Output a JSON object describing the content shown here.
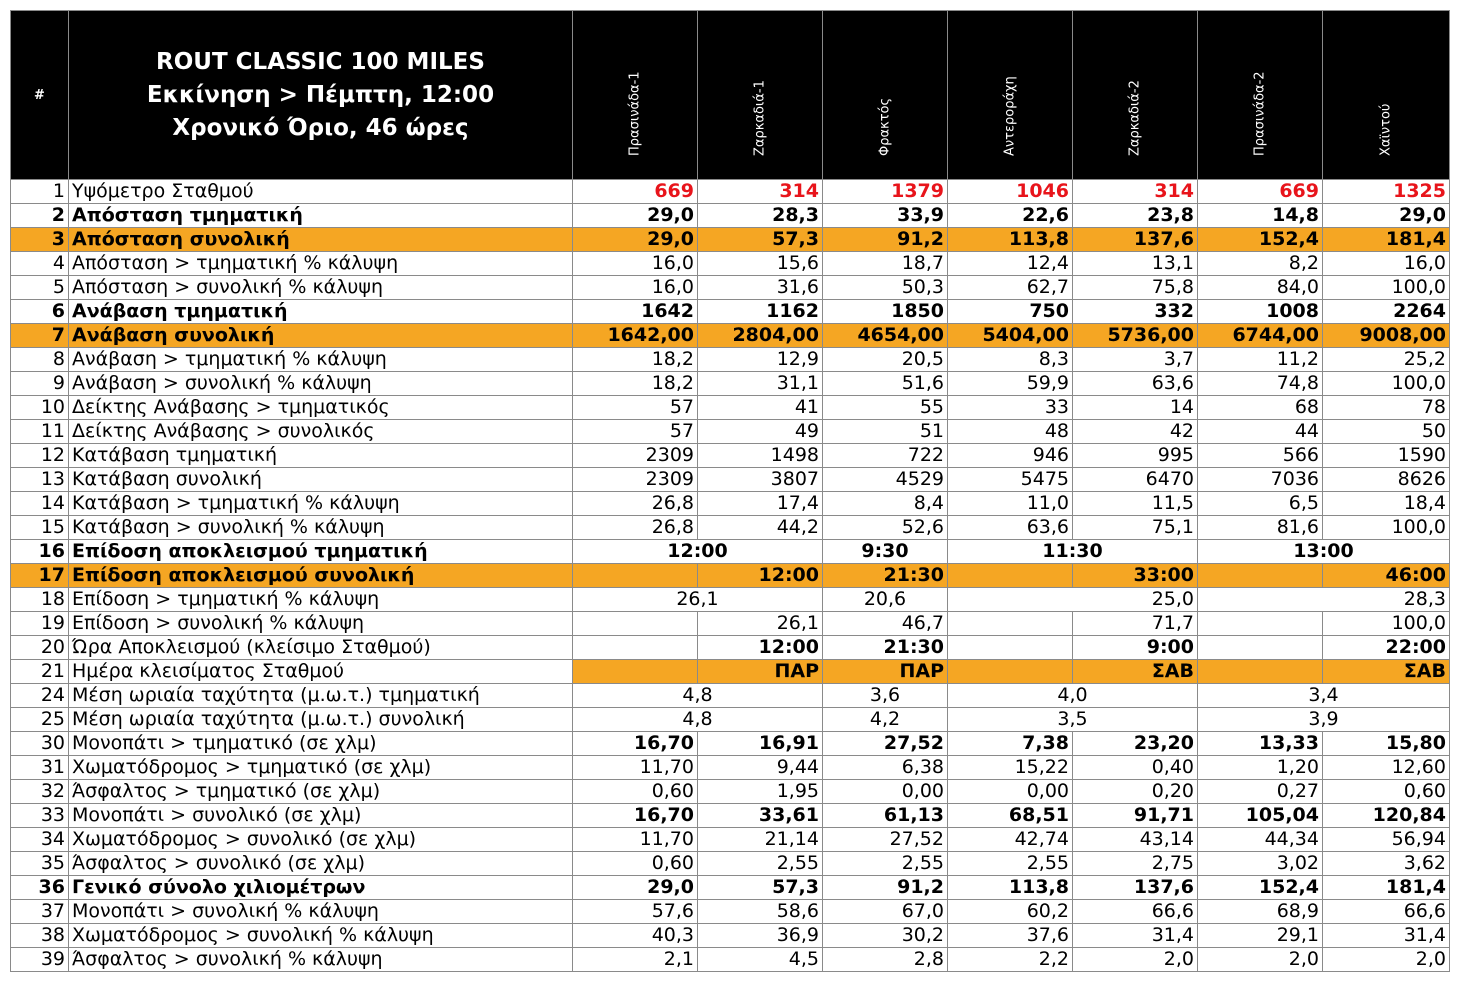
{
  "header": {
    "num_label": "#",
    "title_lines": [
      "ROUT CLASSIC 100 MILES",
      "Εκκίνηση > Πέμπτη, 12:00",
      "Χρονικό Όριο,  46 ώρες"
    ],
    "stations": [
      "Πρασινάδα-1",
      "Ζαρκαδιά-1",
      "Φρακτός",
      "Αντερoράχη",
      "Ζαρκαδιά-2",
      "Πρασινάδα-2",
      "Χαϊντού"
    ]
  },
  "rows": [
    {
      "n": "1",
      "label": "Υψόμετρο Σταθμού",
      "style": "red",
      "vals": [
        "669",
        "314",
        "1379",
        "1046",
        "314",
        "669",
        "1325"
      ]
    },
    {
      "n": "2",
      "label": "Απόσταση τμηματική",
      "style": "bold",
      "vals": [
        "29,0",
        "28,3",
        "33,9",
        "22,6",
        "23,8",
        "14,8",
        "29,0"
      ]
    },
    {
      "n": "3",
      "label": "Απόσταση συνολική",
      "style": "bold orange",
      "vals": [
        "29,0",
        "57,3",
        "91,2",
        "113,8",
        "137,6",
        "152,4",
        "181,4"
      ]
    },
    {
      "n": "4",
      "label": "Απόσταση > τμηματική % κάλυψη",
      "style": "",
      "vals": [
        "16,0",
        "15,6",
        "18,7",
        "12,4",
        "13,1",
        "8,2",
        "16,0"
      ]
    },
    {
      "n": "5",
      "label": "Απόσταση > συνολική % κάλυψη",
      "style": "",
      "vals": [
        "16,0",
        "31,6",
        "50,3",
        "62,7",
        "75,8",
        "84,0",
        "100,0"
      ]
    },
    {
      "n": "6",
      "label": "Ανάβαση τμηματική",
      "style": "bold",
      "vals": [
        "1642",
        "1162",
        "1850",
        "750",
        "332",
        "1008",
        "2264"
      ]
    },
    {
      "n": "7",
      "label": "Ανάβαση συνολική",
      "style": "bold orange",
      "vals": [
        "1642,00",
        "2804,00",
        "4654,00",
        "5404,00",
        "5736,00",
        "6744,00",
        "9008,00"
      ]
    },
    {
      "n": "8",
      "label": "Ανάβαση > τμηματική % κάλυψη",
      "style": "",
      "vals": [
        "18,2",
        "12,9",
        "20,5",
        "8,3",
        "3,7",
        "11,2",
        "25,2"
      ]
    },
    {
      "n": "9",
      "label": "Ανάβαση > συνολική % κάλυψη",
      "style": "",
      "vals": [
        "18,2",
        "31,1",
        "51,6",
        "59,9",
        "63,6",
        "74,8",
        "100,0"
      ]
    },
    {
      "n": "10",
      "label": "Δείκτης Ανάβασης > τμηματικός",
      "style": "",
      "vals": [
        "57",
        "41",
        "55",
        "33",
        "14",
        "68",
        "78"
      ]
    },
    {
      "n": "11",
      "label": "Δείκτης Ανάβασης > συνολικός",
      "style": "",
      "vals": [
        "57",
        "49",
        "51",
        "48",
        "42",
        "44",
        "50"
      ]
    },
    {
      "n": "12",
      "label": "Κατάβαση τμηματική",
      "style": "",
      "vals": [
        "2309",
        "1498",
        "722",
        "946",
        "995",
        "566",
        "1590"
      ]
    },
    {
      "n": "13",
      "label": "Κατάβαση συνολική",
      "style": "",
      "vals": [
        "2309",
        "3807",
        "4529",
        "5475",
        "6470",
        "7036",
        "8626"
      ]
    },
    {
      "n": "14",
      "label": "Κατάβαση > τμηματική % κάλυψη",
      "style": "",
      "vals": [
        "26,8",
        "17,4",
        "8,4",
        "11,0",
        "11,5",
        "6,5",
        "18,4"
      ]
    },
    {
      "n": "15",
      "label": "Κατάβαση > συνολική % κάλυψη",
      "style": "",
      "vals": [
        "26,8",
        "44,2",
        "52,6",
        "63,6",
        "75,1",
        "81,6",
        "100,0"
      ]
    },
    {
      "n": "16",
      "label": "Επίδοση αποκλεισμού τμηματική",
      "style": "bold",
      "merged": [
        {
          "span": 2,
          "v": "12:00"
        },
        {
          "span": 1,
          "v": "9:30"
        },
        {
          "span": 2,
          "v": "11:30"
        },
        {
          "span": 2,
          "v": "13:00"
        }
      ]
    },
    {
      "n": "17",
      "label": "Επίδοση αποκλεισμού συνολική",
      "style": "bold orange",
      "vals": [
        "",
        "12:00",
        "21:30",
        "",
        "33:00",
        "",
        "46:00"
      ]
    },
    {
      "n": "18",
      "label": "Επίδοση > τμηματική % κάλυψη",
      "style": "",
      "merged": [
        {
          "span": 2,
          "v": "26,1"
        },
        {
          "span": 1,
          "v": "20,6"
        },
        {
          "span": 2,
          "v": "25,0",
          "align": "right"
        },
        {
          "span": 2,
          "v": "28,3",
          "align": "right"
        }
      ]
    },
    {
      "n": "19",
      "label": "Επίδοση > συνολική % κάλυψη",
      "style": "",
      "vals": [
        "",
        "26,1",
        "46,7",
        "",
        "71,7",
        "",
        "100,0"
      ]
    },
    {
      "n": "20",
      "label": "Ώρα Αποκλεισμού (κλείσιμο Σταθμού)",
      "style": "bold-vals",
      "vals": [
        "",
        "12:00",
        "21:30",
        "",
        "9:00",
        "",
        "22:00"
      ]
    },
    {
      "n": "21",
      "label": "Ημέρα κλεισίματος Σταθμού",
      "style": "bold-vals orange-vals",
      "vals": [
        "",
        "ΠΑΡ",
        "ΠΑΡ",
        "",
        "ΣΑΒ",
        "",
        "ΣΑΒ"
      ]
    },
    {
      "n": "24",
      "label": "Μέση ωριαία ταχύτητα (μ.ω.τ.) τμηματική",
      "style": "",
      "merged": [
        {
          "span": 2,
          "v": "4,8"
        },
        {
          "span": 1,
          "v": "3,6"
        },
        {
          "span": 2,
          "v": "4,0"
        },
        {
          "span": 2,
          "v": "3,4"
        }
      ]
    },
    {
      "n": "25",
      "label": "Μέση ωριαία ταχύτητα (μ.ω.τ.) συνολική",
      "style": "",
      "merged": [
        {
          "span": 2,
          "v": "4,8"
        },
        {
          "span": 1,
          "v": "4,2"
        },
        {
          "span": 2,
          "v": "3,5"
        },
        {
          "span": 2,
          "v": "3,9"
        }
      ]
    },
    {
      "n": "30",
      "label": "Μονοπάτι > τμηματικό (σε χλμ)",
      "style": "bold-vals",
      "vals": [
        "16,70",
        "16,91",
        "27,52",
        "7,38",
        "23,20",
        "13,33",
        "15,80"
      ]
    },
    {
      "n": "31",
      "label": "Χωματόδρομος > τμηματικό (σε χλμ)",
      "style": "",
      "vals": [
        "11,70",
        "9,44",
        "6,38",
        "15,22",
        "0,40",
        "1,20",
        "12,60"
      ]
    },
    {
      "n": "32",
      "label": "Άσφαλτος > τμηματικό (σε χλμ)",
      "style": "",
      "vals": [
        "0,60",
        "1,95",
        "0,00",
        "0,00",
        "0,20",
        "0,27",
        "0,60"
      ]
    },
    {
      "n": "33",
      "label": "Μονοπάτι > συνολικό (σε χλμ)",
      "style": "bold-vals",
      "vals": [
        "16,70",
        "33,61",
        "61,13",
        "68,51",
        "91,71",
        "105,04",
        "120,84"
      ]
    },
    {
      "n": "34",
      "label": "Χωματόδρομος > συνολικό (σε χλμ)",
      "style": "",
      "vals": [
        "11,70",
        "21,14",
        "27,52",
        "42,74",
        "43,14",
        "44,34",
        "56,94"
      ]
    },
    {
      "n": "35",
      "label": "Άσφαλτος > συνολικό (σε χλμ)",
      "style": "",
      "vals": [
        "0,60",
        "2,55",
        "2,55",
        "2,55",
        "2,75",
        "3,02",
        "3,62"
      ]
    },
    {
      "n": "36",
      "label": "Γενικό σύνολο χιλιομέτρων",
      "style": "bold",
      "vals": [
        "29,0",
        "57,3",
        "91,2",
        "113,8",
        "137,6",
        "152,4",
        "181,4"
      ]
    },
    {
      "n": "37",
      "label": "Μονοπάτι > συνολική % κάλυψη",
      "style": "",
      "vals": [
        "57,6",
        "58,6",
        "67,0",
        "60,2",
        "66,6",
        "68,9",
        "66,6"
      ]
    },
    {
      "n": "38",
      "label": "Χωματόδρομος > συνολική % κάλυψη",
      "style": "",
      "vals": [
        "40,3",
        "36,9",
        "30,2",
        "37,6",
        "31,4",
        "29,1",
        "31,4"
      ]
    },
    {
      "n": "39",
      "label": "Άσφαλτος > συνολική % κάλυψη",
      "style": "",
      "vals": [
        "2,1",
        "4,5",
        "2,8",
        "2,2",
        "2,0",
        "2,0",
        "2,0"
      ]
    }
  ],
  "colors": {
    "header_bg": "#000000",
    "orange": "#f5a623",
    "red_value": "#e8141b"
  }
}
